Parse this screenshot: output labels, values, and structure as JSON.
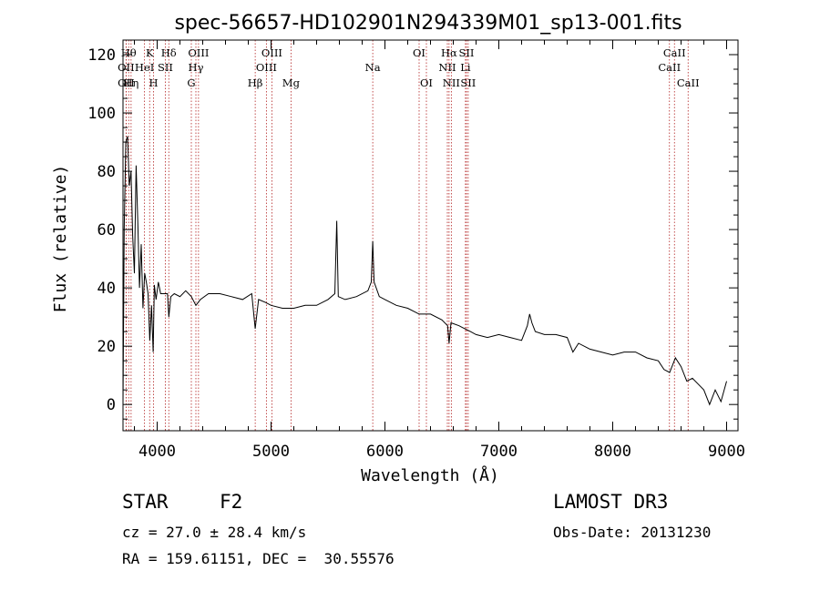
{
  "chart_data": {
    "type": "line",
    "title": "spec-56657-HD102901N294339M01_sp13-001.fits",
    "xlabel": "Wavelength (Å)",
    "ylabel": "Flux (relative)",
    "xlim": [
      3700,
      9100
    ],
    "ylim": [
      -9,
      125
    ],
    "xticks": [
      4000,
      5000,
      6000,
      7000,
      8000,
      9000
    ],
    "yticks": [
      0,
      20,
      40,
      60,
      80,
      100,
      120
    ],
    "grid": false,
    "series": [
      {
        "name": "flux",
        "x": [
          3700,
          3710,
          3725,
          3740,
          3755,
          3770,
          3785,
          3800,
          3815,
          3830,
          3845,
          3860,
          3875,
          3890,
          3905,
          3920,
          3935,
          3950,
          3965,
          3968,
          3975,
          3990,
          4010,
          4030,
          4060,
          4090,
          4102,
          4120,
          4150,
          4200,
          4250,
          4300,
          4340,
          4380,
          4450,
          4550,
          4650,
          4750,
          4830,
          4861,
          4890,
          4950,
          5000,
          5100,
          5200,
          5300,
          5400,
          5500,
          5560,
          5577,
          5590,
          5650,
          5750,
          5850,
          5880,
          5893,
          5905,
          5950,
          6000,
          6100,
          6200,
          6300,
          6400,
          6500,
          6550,
          6563,
          6580,
          6650,
          6700,
          6750,
          6800,
          6900,
          7000,
          7100,
          7200,
          7250,
          7270,
          7290,
          7320,
          7400,
          7500,
          7600,
          7650,
          7700,
          7800,
          7900,
          8000,
          8100,
          8200,
          8300,
          8400,
          8450,
          8500,
          8550,
          8600,
          8650,
          8700,
          8750,
          8800,
          8850,
          8900,
          8950,
          9000
        ],
        "y": [
          0,
          60,
          90,
          92,
          75,
          80,
          58,
          45,
          82,
          62,
          40,
          55,
          33,
          45,
          42,
          38,
          22,
          34,
          18,
          25,
          41,
          36,
          42,
          38,
          38,
          38,
          30,
          37,
          38,
          37,
          39,
          37,
          34,
          36,
          38,
          38,
          37,
          36,
          38,
          26,
          36,
          35,
          34,
          33,
          33,
          34,
          34,
          36,
          38,
          63,
          37,
          36,
          37,
          39,
          42,
          56,
          42,
          37,
          36,
          34,
          33,
          31,
          31,
          29,
          27,
          21,
          28,
          27,
          26,
          25,
          24,
          23,
          24,
          23,
          22,
          27,
          31,
          28,
          25,
          24,
          24,
          23,
          18,
          21,
          19,
          18,
          17,
          18,
          18,
          16,
          15,
          12,
          11,
          16,
          13,
          8,
          9,
          7,
          5,
          0,
          5,
          1,
          8
        ]
      }
    ],
    "lines": [
      {
        "x": 3727,
        "label": "OII",
        "row": 2
      },
      {
        "x": 3727,
        "label": "OII",
        "row": 3
      },
      {
        "x": 3750,
        "label": "Hθ",
        "row": 1
      },
      {
        "x": 3771,
        "label": "Hη",
        "row": 3
      },
      {
        "x": 3889,
        "label": "HeI",
        "row": 2
      },
      {
        "x": 3934,
        "label": "K",
        "row": 1
      },
      {
        "x": 3968,
        "label": "H",
        "row": 3
      },
      {
        "x": 4072,
        "label": "SII",
        "row": 2
      },
      {
        "x": 4102,
        "label": "Hδ",
        "row": 1
      },
      {
        "x": 4300,
        "label": "G",
        "row": 3
      },
      {
        "x": 4340,
        "label": "Hγ",
        "row": 2
      },
      {
        "x": 4363,
        "label": "OIII",
        "row": 1
      },
      {
        "x": 4861,
        "label": "Hβ",
        "row": 3
      },
      {
        "x": 4959,
        "label": "OIII",
        "row": 2
      },
      {
        "x": 5007,
        "label": "OIII",
        "row": 1
      },
      {
        "x": 5175,
        "label": "Mg",
        "row": 3
      },
      {
        "x": 5893,
        "label": "Na",
        "row": 2
      },
      {
        "x": 6300,
        "label": "OI",
        "row": 1
      },
      {
        "x": 6364,
        "label": "OI",
        "row": 3
      },
      {
        "x": 6548,
        "label": "NII",
        "row": 2
      },
      {
        "x": 6563,
        "label": "Hα",
        "row": 1
      },
      {
        "x": 6583,
        "label": "NII",
        "row": 3
      },
      {
        "x": 6707,
        "label": "Li",
        "row": 2
      },
      {
        "x": 6716,
        "label": "SII",
        "row": 1
      },
      {
        "x": 6731,
        "label": "SII",
        "row": 3
      },
      {
        "x": 8498,
        "label": "CaII",
        "row": 2
      },
      {
        "x": 8542,
        "label": "CaII",
        "row": 1
      },
      {
        "x": 8662,
        "label": "CaII",
        "row": 3
      }
    ]
  },
  "info": {
    "class": "STAR",
    "subclass": "F2",
    "survey": "LAMOST DR3",
    "cz": "cz = 27.0 ± 28.4 km/s",
    "obs_date": "Obs-Date: 20131230",
    "radec": "RA = 159.61151, DEC =  30.55576"
  },
  "colors": {
    "line_marker": "#b22222",
    "spectrum": "#000000"
  }
}
